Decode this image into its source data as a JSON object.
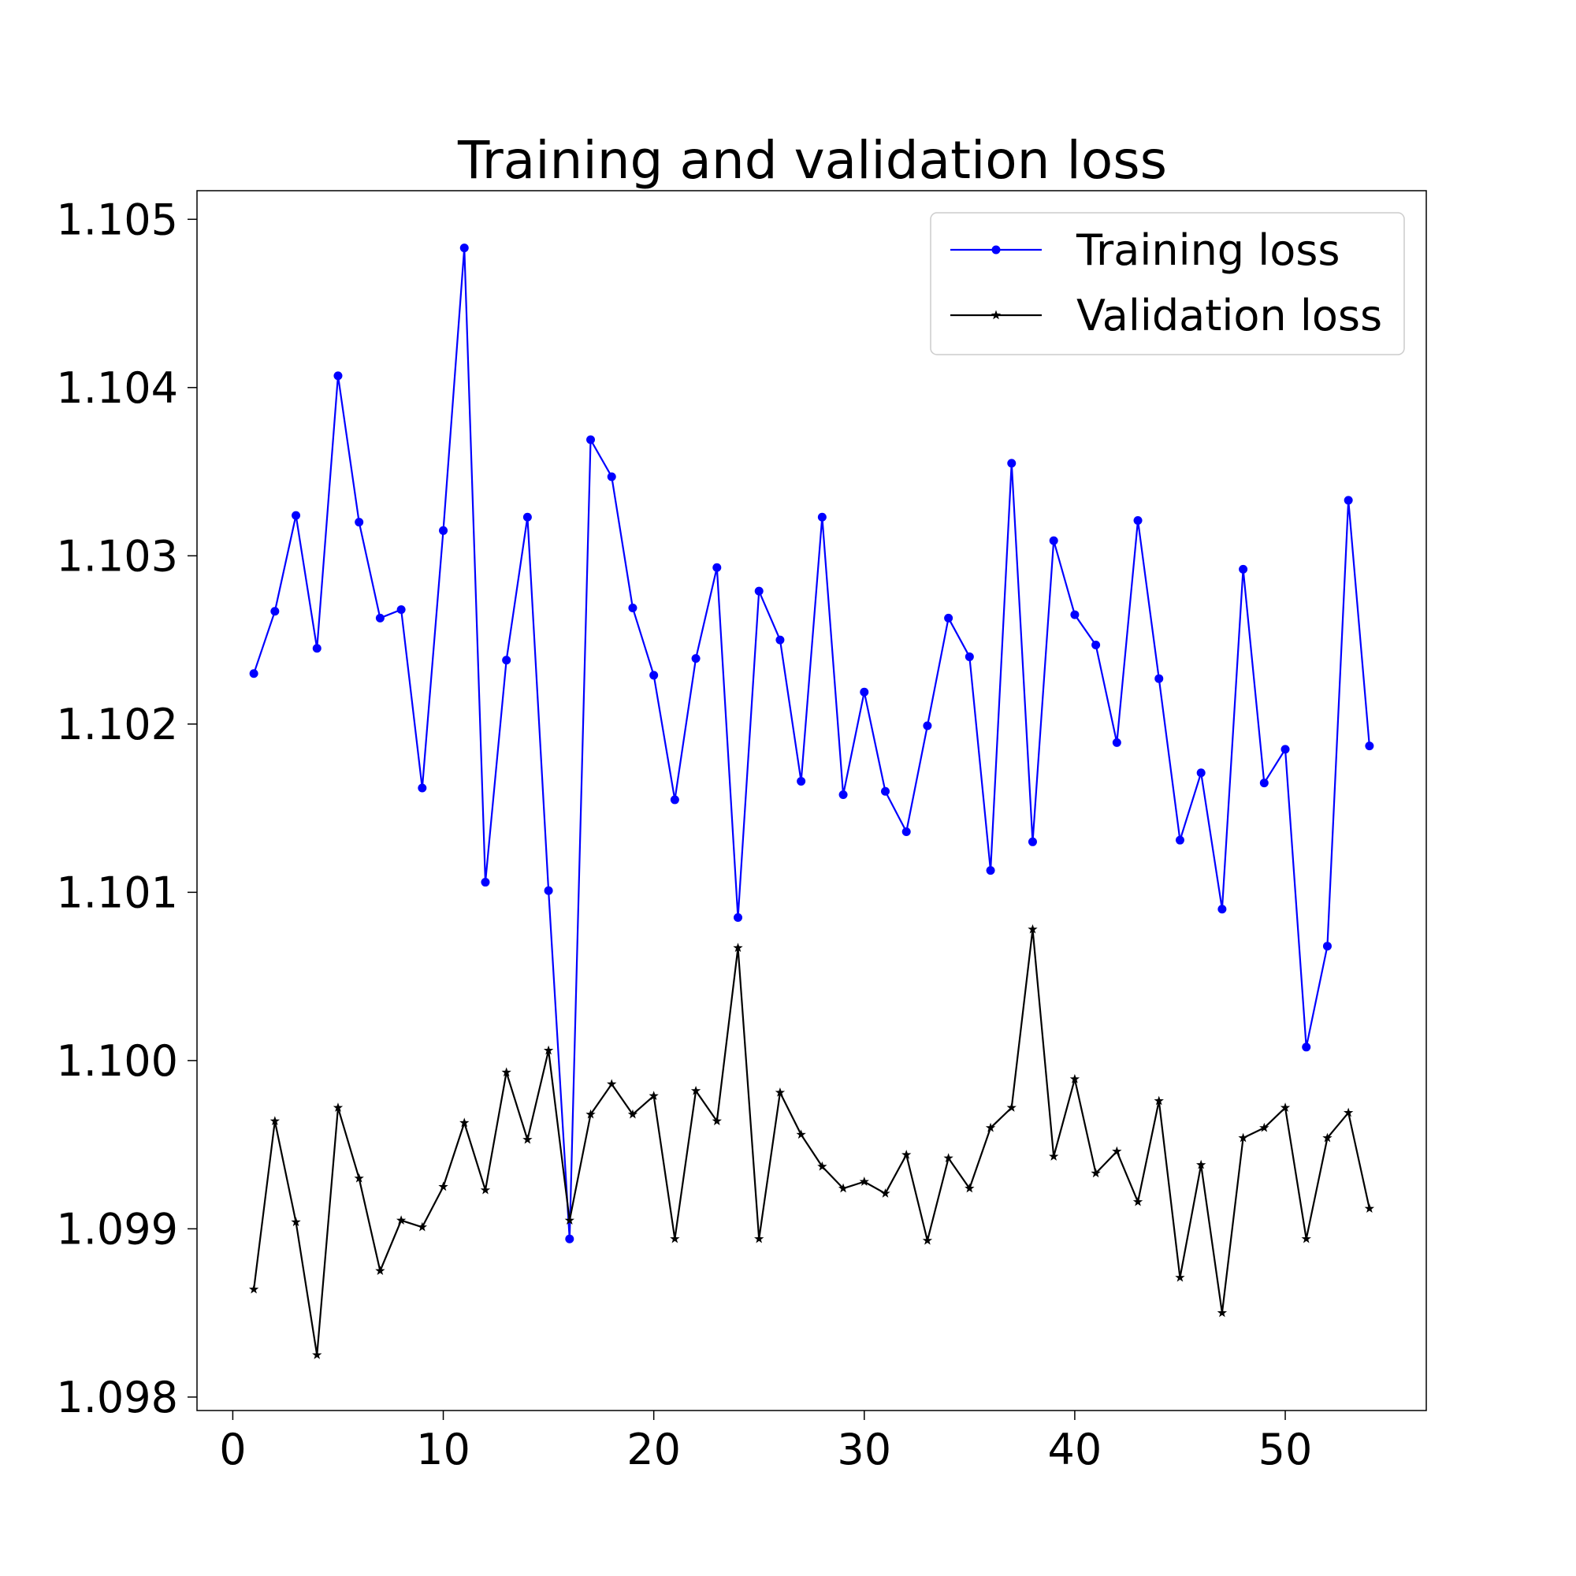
{
  "chart_data": {
    "type": "line",
    "title": "Training and validation loss",
    "xlabel": "",
    "ylabel": "",
    "xlim": [
      -1.7,
      56.7
    ],
    "ylim": [
      1.09792,
      1.10517
    ],
    "x_ticks": [
      0,
      10,
      20,
      30,
      40,
      50
    ],
    "x_tick_labels": [
      "0",
      "10",
      "20",
      "30",
      "40",
      "50"
    ],
    "y_ticks": [
      1.098,
      1.099,
      1.1,
      1.101,
      1.102,
      1.103,
      1.104,
      1.105
    ],
    "y_tick_labels": [
      "1.098",
      "1.099",
      "1.100",
      "1.101",
      "1.102",
      "1.103",
      "1.104",
      "1.105"
    ],
    "grid": false,
    "legend_position": "top-right",
    "x": [
      1,
      2,
      3,
      4,
      5,
      6,
      7,
      8,
      9,
      10,
      11,
      12,
      13,
      14,
      15,
      16,
      17,
      18,
      19,
      20,
      21,
      22,
      23,
      24,
      25,
      26,
      27,
      28,
      29,
      30,
      31,
      32,
      33,
      34,
      35,
      36,
      37,
      38,
      39,
      40,
      41,
      42,
      43,
      44,
      45,
      46,
      47,
      48,
      49,
      50,
      51,
      52,
      53,
      54
    ],
    "series": [
      {
        "name": "Training loss",
        "color": "#0000ff",
        "marker": "circle",
        "values": [
          1.1023,
          1.10267,
          1.10324,
          1.10245,
          1.10407,
          1.1032,
          1.10263,
          1.10268,
          1.10162,
          1.10315,
          1.10483,
          1.10106,
          1.10238,
          1.10323,
          1.10101,
          1.09894,
          1.10369,
          1.10347,
          1.10269,
          1.10229,
          1.10155,
          1.10239,
          1.10293,
          1.10085,
          1.10279,
          1.1025,
          1.10166,
          1.10323,
          1.10158,
          1.10219,
          1.1016,
          1.10136,
          1.10199,
          1.10263,
          1.1024,
          1.10113,
          1.10355,
          1.1013,
          1.10309,
          1.10265,
          1.10247,
          1.10189,
          1.10321,
          1.10227,
          1.10131,
          1.10171,
          1.1009,
          1.10292,
          1.10165,
          1.10185,
          1.10008,
          1.10068,
          1.10333,
          1.10187
        ]
      },
      {
        "name": "Validation loss",
        "color": "#000000",
        "marker": "star",
        "values": [
          1.09864,
          1.09964,
          1.09904,
          1.09825,
          1.09972,
          1.0993,
          1.09875,
          1.09905,
          1.09901,
          1.09925,
          1.09963,
          1.09923,
          1.09993,
          1.09953,
          1.10006,
          1.09905,
          1.09968,
          1.09986,
          1.09968,
          1.09979,
          1.09894,
          1.09982,
          1.09964,
          1.10067,
          1.09894,
          1.09981,
          1.09956,
          1.09937,
          1.09924,
          1.09928,
          1.09921,
          1.09944,
          1.09893,
          1.09942,
          1.09924,
          1.0996,
          1.09972,
          1.10078,
          1.09943,
          1.09989,
          1.09933,
          1.09946,
          1.09916,
          1.09976,
          1.09871,
          1.09938,
          1.0985,
          1.09954,
          1.0996,
          1.09972,
          1.09894,
          1.09954,
          1.09969,
          1.09912
        ]
      }
    ]
  }
}
